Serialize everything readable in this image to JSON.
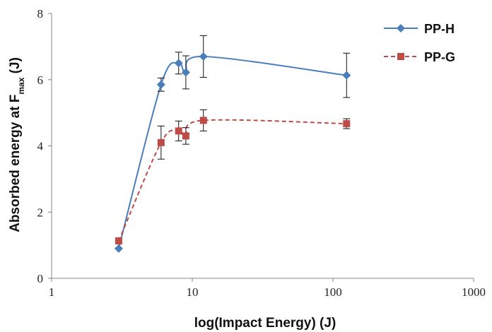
{
  "chart_data": {
    "type": "line",
    "title": "",
    "xlabel": "log(Impact Energy) (J)",
    "ylabel": {
      "main": "Absorbed energy at F",
      "subscript": "max",
      "suffix": " (J)"
    },
    "x_scale": "log",
    "xlim": [
      1,
      1000
    ],
    "ylim": [
      0,
      8
    ],
    "x_ticks": [
      1,
      10,
      100,
      1000
    ],
    "x_tick_labels": [
      "1",
      "10",
      "100",
      "1000"
    ],
    "y_ticks": [
      0,
      2,
      4,
      6,
      8
    ],
    "y_tick_labels": [
      "0",
      "2",
      "4",
      "6",
      "8"
    ],
    "grid": false,
    "legend_position": "top-right",
    "series": [
      {
        "name": "PP-H",
        "color": "#4a7ebb",
        "marker": "diamond",
        "line_style": "solid",
        "x": [
          3,
          6,
          8,
          9,
          12,
          125
        ],
        "y": [
          0.9,
          5.85,
          6.5,
          6.22,
          6.7,
          6.13
        ],
        "error": [
          null,
          0.2,
          0.33,
          0.5,
          0.63,
          0.67
        ]
      },
      {
        "name": "PP-G",
        "color": "#be4b48",
        "marker": "square",
        "line_style": "dashed",
        "x": [
          3,
          6,
          8,
          9,
          12,
          125
        ],
        "y": [
          1.13,
          4.1,
          4.45,
          4.3,
          4.77,
          4.67
        ],
        "error": [
          null,
          0.5,
          0.3,
          0.25,
          0.32,
          0.15
        ]
      }
    ]
  }
}
